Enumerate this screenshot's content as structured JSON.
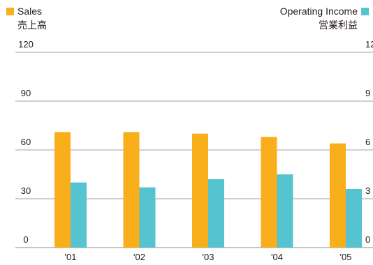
{
  "legend": {
    "left": {
      "label": "Sales",
      "sublabel": "売上高"
    },
    "right": {
      "label": "Operating Income",
      "sublabel": "営業利益"
    }
  },
  "chart_data": {
    "type": "bar",
    "categories": [
      "'01",
      "'02",
      "'03",
      "'04",
      "'05"
    ],
    "series": [
      {
        "name": "Sales",
        "sublabel": "売上高",
        "values": [
          71,
          71,
          70,
          68,
          64
        ],
        "color": "#F9AE1C",
        "axis": "left"
      },
      {
        "name": "Operating Income",
        "sublabel": "営業利益",
        "values": [
          40,
          37,
          42,
          45,
          36
        ],
        "color": "#55C4D0",
        "axis": "right"
      }
    ],
    "ylim": [
      0,
      120
    ],
    "yticks": [
      "0",
      "30",
      "60",
      "90",
      "120"
    ],
    "right_yticks": [
      "0",
      "3",
      "6",
      "9",
      "12"
    ],
    "grid": true,
    "legend_position": "top"
  }
}
